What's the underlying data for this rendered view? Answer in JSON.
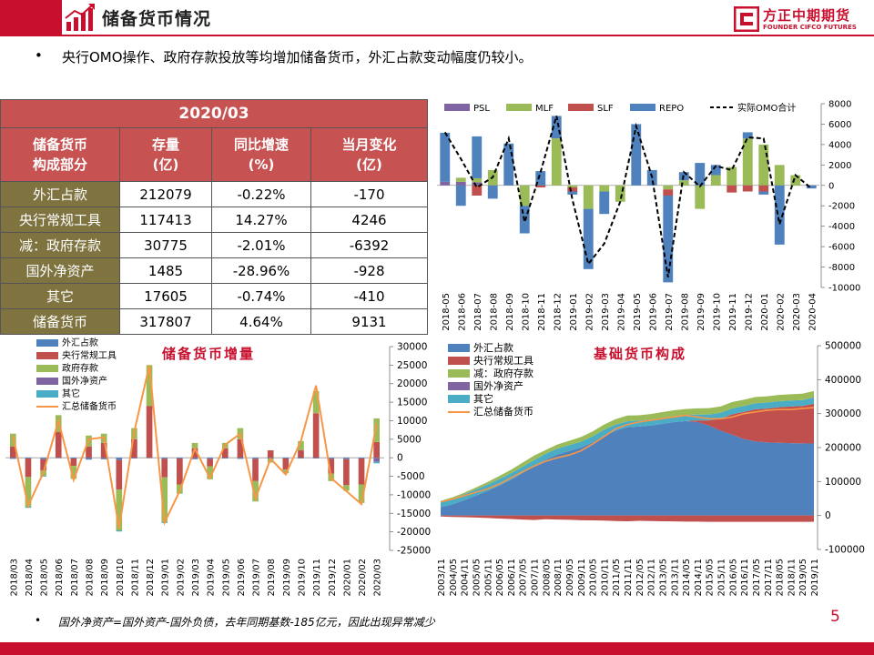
{
  "header": {
    "title": "储备货币情况"
  },
  "logo": {
    "cn": "方正中期期货",
    "en": "FOUNDER CIFCO FUTURES"
  },
  "bullet": "央行OMO操作、政府存款投放等均增加储备货币，外汇占款变动幅度仍较小。",
  "table": {
    "title": "2020/03",
    "headers": [
      [
        "储备货币",
        "构成部分"
      ],
      [
        "存量",
        "(亿)"
      ],
      [
        "同比增速",
        "(%)"
      ],
      [
        "当月变化",
        "(亿)"
      ]
    ],
    "rows": [
      [
        "外汇占款",
        "212079",
        "-0.22%",
        "-170"
      ],
      [
        "央行常规工具",
        "117413",
        "14.27%",
        "4246"
      ],
      [
        "减：政府存款",
        "30775",
        "-2.01%",
        "-6392"
      ],
      [
        "国外净资产",
        "1485",
        "-28.96%",
        "-928"
      ],
      [
        "其它",
        "17605",
        "-0.74%",
        "-410"
      ],
      [
        "储备货币",
        "317807",
        "4.64%",
        "9131"
      ]
    ]
  },
  "footnote": "国外净资产=国外资产-国外负债，去年同期基数-185亿元，因此出现异常减少",
  "page_number": "5",
  "colors": {
    "brand_red": "#c8102e",
    "header_fill": "#c75252",
    "label_fill": "#7f7340"
  },
  "chart_data": [
    {
      "type": "bar",
      "title": "",
      "stacked": true,
      "categories": [
        "2018-05",
        "2018-06",
        "2018-07",
        "2018-08",
        "2018-09",
        "2018-10",
        "2018-11",
        "2018-12",
        "2019-01",
        "2019-02",
        "2019-03",
        "2019-04",
        "2019-05",
        "2019-06",
        "2019-07",
        "2019-08",
        "2019-09",
        "2019-10",
        "2019-11",
        "2019-12",
        "2020-01",
        "2020-02",
        "2020-03",
        "2020-04"
      ],
      "series": [
        {
          "name": "PSL",
          "color": "#8064a2",
          "values": [
            350,
            350,
            300,
            0,
            0,
            0,
            0,
            0,
            0,
            0,
            0,
            0,
            0,
            0,
            0,
            0,
            0,
            0,
            0,
            0,
            0,
            0,
            0,
            0
          ]
        },
        {
          "name": "MLF",
          "color": "#9bbb59",
          "values": [
            0,
            400,
            400,
            1500,
            0,
            -2000,
            0,
            4600,
            -200,
            -2300,
            -600,
            -1600,
            0,
            0,
            -400,
            500,
            -2300,
            1000,
            1800,
            4600,
            4000,
            2000,
            1000,
            0
          ]
        },
        {
          "name": "SLF",
          "color": "#c0504d",
          "values": [
            0,
            0,
            -1000,
            0,
            0,
            0,
            -200,
            0,
            -400,
            0,
            0,
            0,
            0,
            0,
            -600,
            0,
            0,
            0,
            -700,
            -600,
            -600,
            0,
            0,
            0
          ]
        },
        {
          "name": "REPO",
          "color": "#4f81bd",
          "values": [
            4800,
            -2000,
            4100,
            -1300,
            4100,
            -2700,
            1400,
            2200,
            -300,
            -5900,
            -2200,
            0,
            6000,
            1500,
            -8500,
            800,
            2200,
            1000,
            0,
            600,
            -300,
            -5800,
            0,
            -300
          ]
        }
      ],
      "line": {
        "name": "实际OMO合计",
        "values": [
          5200,
          2600,
          -200,
          800,
          4600,
          -3600,
          1300,
          6800,
          -1400,
          -7700,
          -5700,
          -1600,
          5800,
          800,
          -9000,
          1300,
          -100,
          1900,
          1500,
          4700,
          4600,
          -3800,
          1000,
          -300
        ]
      },
      "ylim": [
        -10000,
        8000
      ],
      "yticks": [
        -10000,
        -8000,
        -6000,
        -4000,
        -2000,
        0,
        2000,
        4000,
        6000,
        8000
      ],
      "legend": "top",
      "grid": false
    },
    {
      "type": "bar",
      "title": "储备货币增量",
      "stacked": true,
      "categories": [
        "2018/03",
        "2018/04",
        "2018/05",
        "2018/06",
        "2018/07",
        "2018/08",
        "2018/09",
        "2018/10",
        "2018/11",
        "2018/12",
        "2019/01",
        "2019/02",
        "2019/03",
        "2019/04",
        "2019/05",
        "2019/06",
        "2019/07",
        "2019/08",
        "2019/09",
        "2019/10",
        "2019/11",
        "2019/12",
        "2020/01",
        "2020/02",
        "2020/03"
      ],
      "series": [
        {
          "name": "外汇占款",
          "color": "#4f81bd",
          "values": [
            -300,
            -200,
            -400,
            -100,
            -200,
            -500,
            -400,
            -600,
            -200,
            -100,
            -300,
            -200,
            -400,
            -300,
            -200,
            -300,
            -300,
            -300,
            -200,
            -200,
            -200,
            -300,
            -400,
            -200,
            -170
          ]
        },
        {
          "name": "央行常规工具",
          "color": "#c0504d",
          "values": [
            3000,
            -5000,
            -3000,
            7000,
            -2000,
            3000,
            4000,
            -8000,
            5000,
            14000,
            -5000,
            -7000,
            2500,
            -2000,
            2500,
            5000,
            -6000,
            2000,
            -3000,
            2000,
            12000,
            -4000,
            -7000,
            -7000,
            4246
          ]
        },
        {
          "name": "政府存款",
          "color": "#9bbb59",
          "values": [
            3500,
            -8000,
            -1500,
            4500,
            -3500,
            3000,
            2500,
            -11000,
            3000,
            11000,
            -12000,
            -2500,
            1500,
            -3500,
            1500,
            3000,
            -5500,
            -1000,
            -1000,
            2500,
            6000,
            -2000,
            -1500,
            -5000,
            6392
          ]
        },
        {
          "name": "国外净资产",
          "color": "#8064a2",
          "values": [
            0,
            0,
            0,
            0,
            0,
            0,
            0,
            0,
            0,
            0,
            0,
            0,
            0,
            0,
            0,
            0,
            0,
            0,
            0,
            0,
            0,
            0,
            0,
            0,
            -928
          ]
        },
        {
          "name": "其它",
          "color": "#4bacc6",
          "values": [
            0,
            -300,
            -200,
            0,
            0,
            0,
            0,
            -300,
            0,
            0,
            -300,
            0,
            0,
            0,
            0,
            0,
            0,
            0,
            0,
            0,
            0,
            0,
            0,
            0,
            -410
          ]
        }
      ],
      "line": {
        "name": "汇总储备货币",
        "color": "#f79646",
        "values": [
          5800,
          -13000,
          -4000,
          10000,
          -6000,
          5000,
          5500,
          -19000,
          7000,
          25000,
          -17500,
          -9000,
          2500,
          -5500,
          3500,
          6500,
          -11000,
          -300,
          -4500,
          4500,
          19500,
          -5500,
          -9000,
          -12500,
          9131
        ]
      },
      "ylim": [
        -25000,
        30000
      ],
      "yticks": [
        -25000,
        -20000,
        -15000,
        -10000,
        -5000,
        0,
        5000,
        10000,
        15000,
        20000,
        25000,
        30000
      ],
      "legend": "top-left",
      "grid": false
    },
    {
      "type": "area",
      "title": "基础货币构成",
      "stacked": true,
      "x_ticks": [
        "2003/11",
        "2004/05",
        "2004/11",
        "2005/05",
        "2005/11",
        "2006/05",
        "2006/11",
        "2007/05",
        "2007/11",
        "2008/05",
        "2008/11",
        "2009/05",
        "2009/11",
        "2010/05",
        "2010/11",
        "2011/05",
        "2011/11",
        "2012/05",
        "2012/11",
        "2013/05",
        "2013/11",
        "2014/05",
        "2014/11",
        "2015/05",
        "2015/11",
        "2016/05",
        "2016/11",
        "2017/05",
        "2017/11",
        "2018/05",
        "2018/11",
        "2019/05",
        "2019/11"
      ],
      "series": [
        {
          "name": "外汇占款",
          "color": "#4f81bd",
          "values": [
            25000,
            33000,
            45000,
            58000,
            72000,
            88000,
            105000,
            125000,
            145000,
            165000,
            180000,
            190000,
            200000,
            215000,
            235000,
            250000,
            260000,
            262000,
            265000,
            270000,
            275000,
            278000,
            275000,
            265000,
            250000,
            238000,
            225000,
            218000,
            215000,
            214000,
            213000,
            212500,
            212000
          ]
        },
        {
          "name": "央行常规工具",
          "color": "#c0504d",
          "values": [
            0,
            0,
            0,
            0,
            0,
            0,
            0,
            0,
            0,
            0,
            0,
            0,
            0,
            0,
            0,
            0,
            0,
            0,
            0,
            0,
            0,
            0,
            5000,
            15000,
            35000,
            60000,
            80000,
            95000,
            100000,
            105000,
            108000,
            110000,
            117000
          ]
        },
        {
          "name": "减：政府存款",
          "color": "#9bbb59",
          "values": [
            -5000,
            -7000,
            -8000,
            -10000,
            -12000,
            -15000,
            -17000,
            -20000,
            -22000,
            -18000,
            -20000,
            -21000,
            -23000,
            -24000,
            -25000,
            -27000,
            -28000,
            -26000,
            -27000,
            -28000,
            -29000,
            -30000,
            -30000,
            -31000,
            -31000,
            -31000,
            -31000,
            -31000,
            -31000,
            -31000,
            -31000,
            -31000,
            -30775
          ]
        },
        {
          "name": "国外净资产",
          "color": "#8064a2",
          "values": [
            0,
            0,
            0,
            0,
            0,
            0,
            0,
            0,
            0,
            0,
            0,
            0,
            0,
            0,
            0,
            0,
            0,
            0,
            0,
            0,
            0,
            0,
            0,
            0,
            0,
            0,
            0,
            0,
            0,
            0,
            0,
            0,
            1485
          ]
        },
        {
          "name": "其它",
          "color": "#4bacc6",
          "values": [
            15000,
            16000,
            17000,
            18000,
            19000,
            19000,
            19000,
            18000,
            18000,
            17000,
            17000,
            17000,
            17000,
            17500,
            17500,
            17500,
            17500,
            17500,
            17500,
            17500,
            17500,
            17500,
            17500,
            17500,
            17500,
            17500,
            17500,
            17500,
            17500,
            17500,
            17500,
            17500,
            17605
          ]
        }
      ],
      "line": {
        "name": "汇总储备货币",
        "color": "#f79646",
        "values": [
          40000,
          48000,
          58000,
          68000,
          78000,
          92000,
          110000,
          128000,
          145000,
          160000,
          170000,
          178000,
          190000,
          210000,
          232000,
          255000,
          268000,
          275000,
          280000,
          285000,
          290000,
          295000,
          290000,
          285000,
          285000,
          290000,
          300000,
          305000,
          310000,
          312000,
          312000,
          315000,
          317807
        ]
      },
      "ylim": [
        -100000,
        500000
      ],
      "yticks": [
        -100000,
        0,
        100000,
        200000,
        300000,
        400000,
        500000
      ],
      "legend": "top-left",
      "grid": false
    }
  ]
}
